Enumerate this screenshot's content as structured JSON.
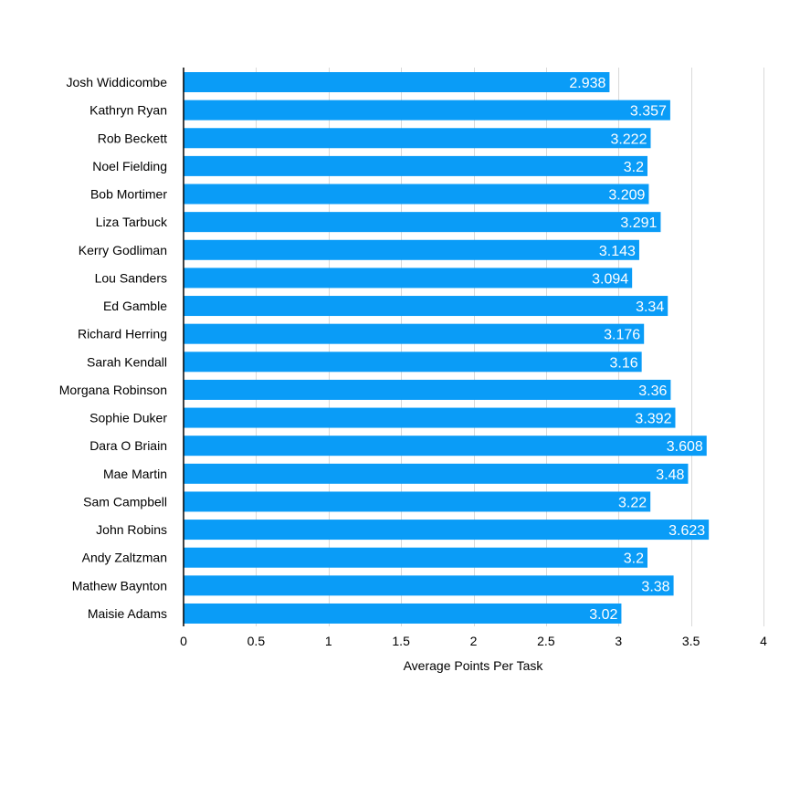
{
  "chart_data": {
    "type": "bar",
    "orientation": "horizontal",
    "title": "",
    "xlabel": "Average Points Per Task",
    "ylabel": "",
    "xlim": [
      0,
      4
    ],
    "xticks": [
      0,
      0.5,
      1,
      1.5,
      2,
      2.5,
      3,
      3.5,
      4
    ],
    "xtick_labels": [
      "0",
      "0.5",
      "1",
      "1.5",
      "2",
      "2.5",
      "3",
      "3.5",
      "4"
    ],
    "grid": true,
    "categories": [
      "Josh Widdicombe",
      "Kathryn Ryan",
      "Rob Beckett",
      "Noel Fielding",
      "Bob Mortimer",
      "Liza Tarbuck",
      "Kerry Godliman",
      "Lou Sanders",
      "Ed Gamble",
      "Richard Herring",
      "Sarah Kendall",
      "Morgana Robinson",
      "Sophie Duker",
      "Dara O Briain",
      "Mae Martin",
      "Sam Campbell",
      "John Robins",
      "Andy Zaltzman",
      "Mathew Baynton",
      "Maisie Adams"
    ],
    "values": [
      2.938,
      3.357,
      3.222,
      3.2,
      3.209,
      3.291,
      3.143,
      3.094,
      3.34,
      3.176,
      3.16,
      3.36,
      3.392,
      3.608,
      3.48,
      3.22,
      3.623,
      3.2,
      3.38,
      3.02
    ],
    "value_labels": [
      "2.938",
      "3.357",
      "3.222",
      "3.2",
      "3.209",
      "3.291",
      "3.143",
      "3.094",
      "3.34",
      "3.176",
      "3.16",
      "3.36",
      "3.392",
      "3.608",
      "3.48",
      "3.22",
      "3.623",
      "3.2",
      "3.38",
      "3.02"
    ],
    "bar_color": "#0a9cf7",
    "grid_color": "#d9d9d9",
    "axis_color": "#000000",
    "value_label_color": "#ffffff"
  }
}
